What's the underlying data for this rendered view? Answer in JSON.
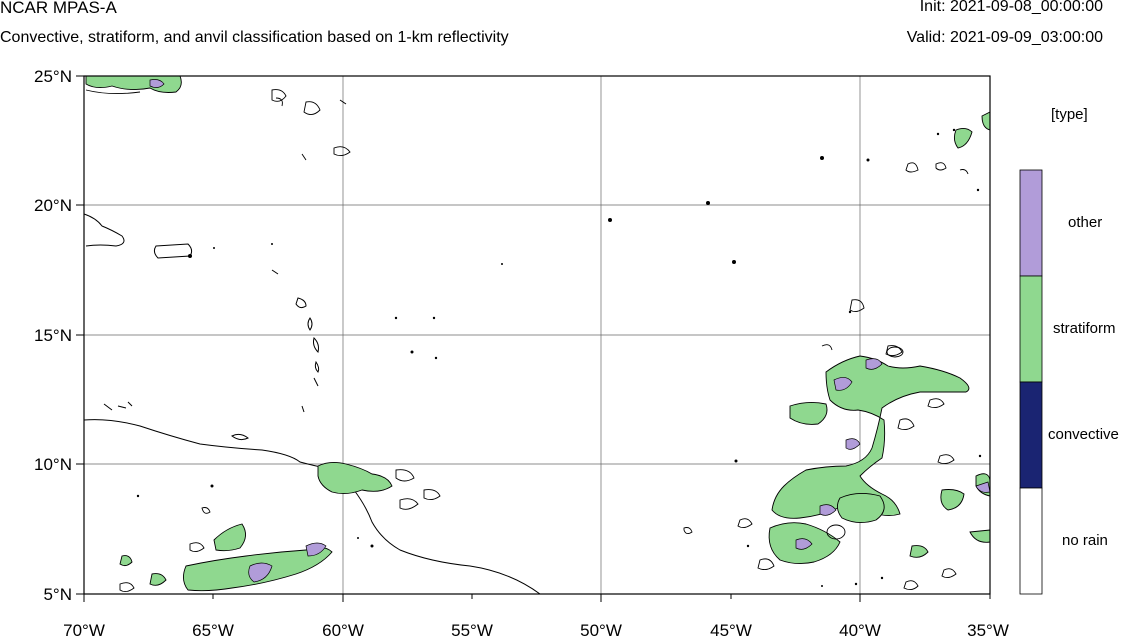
{
  "header": {
    "title": "NCAR MPAS-A",
    "subtitle": "Convective, stratiform, and anvil classification based on 1-km reflectivity",
    "init": "Init: 2021-09-08_00:00:00",
    "valid": "Valid: 2021-09-09_03:00:00"
  },
  "map": {
    "projection": "cylindrical equidistant",
    "lon_range": [
      -70,
      -35
    ],
    "lat_range": [
      5,
      25
    ],
    "grid": true,
    "lon_ticks": [
      "70°W",
      "65°W",
      "60°W",
      "55°W",
      "50°W",
      "45°W",
      "40°W",
      "35°W"
    ],
    "lat_ticks": [
      "25°N",
      "20°N",
      "15°N",
      "10°N",
      "5°N"
    ]
  },
  "legend": {
    "title": "[type]",
    "entries": [
      {
        "label": "other",
        "color": "#b19cd9"
      },
      {
        "label": "stratiform",
        "color": "#8fd88f"
      },
      {
        "label": "convective",
        "color": "#1a2472"
      },
      {
        "label": "no rain",
        "color": "#ffffff"
      }
    ]
  }
}
